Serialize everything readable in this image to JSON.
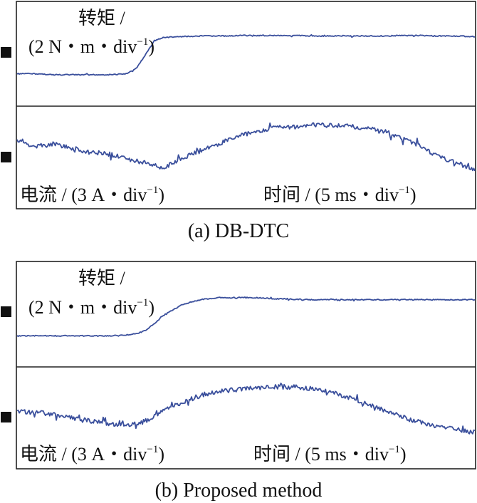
{
  "panels": [
    {
      "caption": "(a) DB-DTC",
      "torque_label_1": "转矩 /",
      "torque_label_2_pre": "(2 N・m・div",
      "torque_label_2_sup": "−1",
      "torque_label_2_post": ")",
      "current_label_pre": "电流 / (3 A・div",
      "current_label_sup": "−1",
      "current_label_post": ")",
      "time_label_pre": "时间 /  (5 ms・div",
      "time_label_sup": "−1",
      "time_label_post": ")"
    },
    {
      "caption": "(b) Proposed method",
      "torque_label_1": "转矩 /",
      "torque_label_2_pre": "(2 N・m・div",
      "torque_label_2_sup": "−1",
      "torque_label_2_post": ")",
      "current_label_pre": "电流 / (3 A・div",
      "current_label_sup": "−1",
      "current_label_post": ")",
      "time_label_pre": "时间 /  (5 ms・div",
      "time_label_sup": "−1",
      "time_label_post": ")"
    }
  ],
  "chart_data": [
    {
      "type": "line",
      "title": "(a) DB-DTC",
      "x": [
        0,
        2,
        4,
        6,
        8,
        10,
        12,
        13,
        14,
        15,
        16,
        18,
        20,
        22,
        24,
        26,
        28,
        30,
        32,
        34,
        36,
        38,
        40,
        42,
        44,
        46,
        48,
        50
      ],
      "series": [
        {
          "name": "转矩",
          "values": [
            1.0,
            1.0,
            0.9,
            0.9,
            0.9,
            0.9,
            1.0,
            1.5,
            2.8,
            4.2,
            4.5,
            4.6,
            4.65,
            4.65,
            4.7,
            4.7,
            4.7,
            4.7,
            4.65,
            4.65,
            4.65,
            4.65,
            4.65,
            4.7,
            4.7,
            4.65,
            4.65,
            4.6
          ]
        },
        {
          "name": "电流",
          "values": [
            1.7,
            1.3,
            1.5,
            1.2,
            0.9,
            0.8,
            0.5,
            0.3,
            0.1,
            0.0,
            -0.2,
            0.5,
            1.0,
            1.5,
            2.0,
            2.4,
            2.6,
            2.7,
            2.8,
            2.8,
            2.8,
            2.6,
            2.4,
            1.9,
            1.4,
            0.6,
            0.2,
            -0.4
          ]
        }
      ],
      "xlim": [
        0,
        50
      ],
      "ylim": [
        -1,
        6
      ]
    },
    {
      "type": "line",
      "title": "(b) Proposed method",
      "x": [
        0,
        2,
        4,
        6,
        8,
        10,
        12,
        13,
        14,
        15,
        16,
        18,
        20,
        22,
        24,
        26,
        28,
        30,
        32,
        34,
        36,
        38,
        40,
        42,
        44,
        46,
        48,
        50
      ],
      "series": [
        {
          "name": "转矩",
          "values": [
            0.8,
            0.8,
            0.8,
            0.8,
            0.8,
            0.8,
            0.9,
            1.0,
            1.3,
            2.0,
            2.8,
            3.8,
            4.3,
            4.5,
            4.5,
            4.5,
            4.4,
            4.35,
            4.3,
            4.3,
            4.3,
            4.3,
            4.3,
            4.3,
            4.3,
            4.3,
            4.3,
            4.3
          ]
        },
        {
          "name": "电流",
          "values": [
            1.0,
            0.9,
            0.8,
            0.5,
            0.3,
            0.1,
            0.0,
            0.1,
            0.3,
            0.6,
            1.0,
            1.6,
            2.1,
            2.4,
            2.5,
            2.6,
            2.7,
            2.7,
            2.6,
            2.4,
            2.0,
            1.6,
            1.1,
            0.6,
            0.2,
            -0.1,
            -0.3,
            -0.5
          ]
        }
      ],
      "xlim": [
        0,
        50
      ],
      "ylim": [
        -1,
        6
      ]
    }
  ],
  "colors": {
    "trace": "#3a4f9c",
    "frame": "#222222"
  }
}
